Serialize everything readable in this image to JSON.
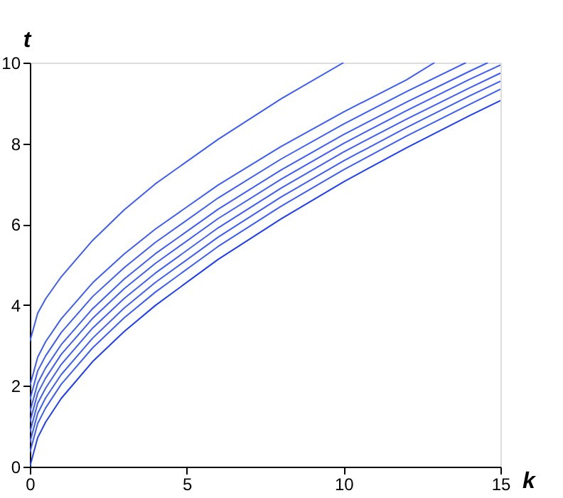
{
  "chart_data": {
    "type": "line",
    "xlabel": "k",
    "ylabel": "t",
    "x": [
      0,
      0.25,
      0.5,
      1,
      2,
      3,
      4,
      6,
      8,
      10,
      12,
      14,
      15
    ],
    "xlim": [
      0,
      15
    ],
    "xticks": [
      0,
      5,
      10,
      15
    ],
    "ylim": [
      0,
      10
    ],
    "yticks": [
      0,
      2,
      4,
      6,
      8,
      10
    ],
    "grid": false,
    "legend": false,
    "marker": "none",
    "line_style": "solid",
    "series": [
      {
        "color": "#3d5cff",
        "x": [
          0,
          0.25,
          0.5,
          1,
          2,
          3,
          4,
          6,
          8,
          10
        ],
        "values": [
          3.1,
          3.8,
          4.15,
          4.7,
          5.6,
          6.35,
          7.0,
          8.1,
          9.1,
          10.0
        ]
      },
      {
        "color": "#3d5cff",
        "x": [
          0,
          0.25,
          0.5,
          1,
          2,
          3,
          4,
          6,
          8,
          10,
          12,
          12.9
        ],
        "values": [
          2.0,
          2.71,
          3.09,
          3.66,
          4.55,
          5.26,
          5.88,
          6.97,
          7.92,
          8.78,
          9.57,
          10.0
        ]
      },
      {
        "color": "#3d5cff",
        "x": [
          0,
          0.25,
          0.5,
          1,
          2,
          3,
          4,
          6,
          8,
          10,
          12,
          13.9
        ],
        "values": [
          1.65,
          2.37,
          2.74,
          3.32,
          4.21,
          4.92,
          5.55,
          6.65,
          7.61,
          8.48,
          9.28,
          10.0
        ]
      },
      {
        "color": "#3d5cff",
        "x": [
          0,
          0.25,
          0.5,
          1,
          2,
          3,
          4,
          6,
          8,
          10,
          12,
          14,
          14.6
        ],
        "values": [
          1.35,
          2.07,
          2.44,
          3.02,
          3.91,
          4.64,
          5.27,
          6.37,
          7.34,
          8.22,
          9.02,
          9.78,
          10.0
        ]
      },
      {
        "color": "#3d5cff",
        "values": [
          1.1,
          1.82,
          2.19,
          2.78,
          3.67,
          4.4,
          5.03,
          6.14,
          7.11,
          8.0,
          8.81,
          9.58,
          9.94
        ]
      },
      {
        "color": "#3d5cff",
        "values": [
          0.85,
          1.57,
          1.94,
          2.53,
          3.43,
          4.16,
          4.79,
          5.91,
          6.89,
          7.79,
          8.6,
          9.37,
          9.74
        ]
      },
      {
        "color": "#3d5cff",
        "values": [
          0.6,
          1.32,
          1.7,
          2.28,
          3.18,
          3.92,
          4.56,
          5.68,
          6.67,
          7.57,
          8.39,
          9.17,
          9.54
        ]
      },
      {
        "color": "#3d5cff",
        "values": [
          0.35,
          1.07,
          1.45,
          2.04,
          2.94,
          3.68,
          4.32,
          5.45,
          6.44,
          7.35,
          8.18,
          8.96,
          9.34
        ]
      },
      {
        "color": "#1f3dff",
        "values": [
          0,
          0.72,
          1.1,
          1.69,
          2.6,
          3.34,
          3.99,
          5.13,
          6.13,
          7.05,
          7.89,
          8.68,
          9.06
        ]
      }
    ]
  }
}
